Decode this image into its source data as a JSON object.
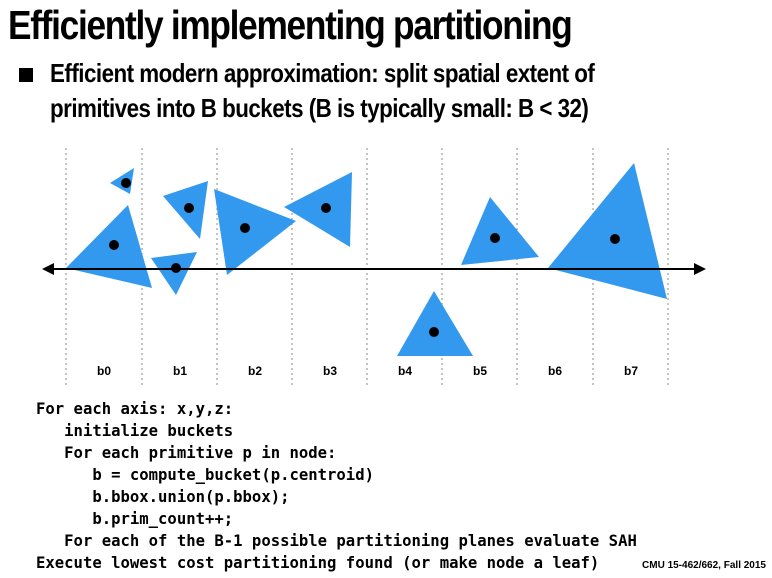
{
  "slide": {
    "title": "Efficiently implementing partitioning",
    "bullet_line1": "Efficient modern approximation: split spatial extent of",
    "bullet_line2": "primitives into B buckets (B is typically small: B < 32)",
    "footer": "CMU 15-462/662, Fall 2015"
  },
  "diagram": {
    "bucket_labels": [
      "b0",
      "b1",
      "b2",
      "b3",
      "b4",
      "b5",
      "b6",
      "b7"
    ],
    "triangle_color": "#3399ee"
  },
  "code": {
    "lines": [
      "For each axis: x,y,z:",
      "   initialize buckets",
      "   For each primitive p in node:",
      "      b = compute_bucket(p.centroid)",
      "      b.bbox.union(p.bbox);",
      "      b.prim_count++;",
      "   For each of the B-1 possible partitioning planes evaluate SAH",
      "Execute lowest cost partitioning found (or make node a leaf)"
    ]
  }
}
